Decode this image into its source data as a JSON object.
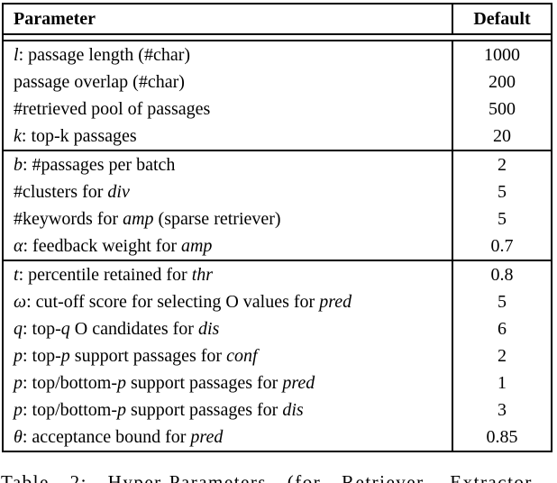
{
  "table": {
    "header": {
      "parameter": "Parameter",
      "default": "Default"
    },
    "groups": [
      {
        "rows": [
          {
            "segments": [
              {
                "text": "l",
                "style": "italic"
              },
              {
                "text": ": passage length (#char)",
                "style": "normal"
              }
            ],
            "value": "1000"
          },
          {
            "segments": [
              {
                "text": "passage overlap (#char)",
                "style": "normal"
              }
            ],
            "value": "200"
          },
          {
            "segments": [
              {
                "text": "#retrieved pool of passages",
                "style": "normal"
              }
            ],
            "value": "500"
          },
          {
            "segments": [
              {
                "text": "k",
                "style": "italic"
              },
              {
                "text": ": top-k passages",
                "style": "normal"
              }
            ],
            "value": "20"
          }
        ]
      },
      {
        "rows": [
          {
            "segments": [
              {
                "text": "b",
                "style": "italic"
              },
              {
                "text": ": #passages per batch",
                "style": "normal"
              }
            ],
            "value": "2"
          },
          {
            "segments": [
              {
                "text": "#clusters for ",
                "style": "normal"
              },
              {
                "text": "div",
                "style": "italic"
              }
            ],
            "value": "5"
          },
          {
            "segments": [
              {
                "text": "#keywords for ",
                "style": "normal"
              },
              {
                "text": "amp",
                "style": "italic"
              },
              {
                "text": " (sparse retriever)",
                "style": "normal"
              }
            ],
            "value": "5"
          },
          {
            "segments": [
              {
                "text": "α",
                "style": "italic"
              },
              {
                "text": ": feedback weight for ",
                "style": "normal"
              },
              {
                "text": "amp",
                "style": "italic"
              }
            ],
            "value": "0.7"
          }
        ]
      },
      {
        "rows": [
          {
            "segments": [
              {
                "text": "t",
                "style": "italic"
              },
              {
                "text": ": percentile retained for ",
                "style": "normal"
              },
              {
                "text": "thr",
                "style": "italic"
              }
            ],
            "value": "0.8"
          },
          {
            "segments": [
              {
                "text": "ω",
                "style": "italic"
              },
              {
                "text": ": cut-off score for selecting O values for ",
                "style": "normal"
              },
              {
                "text": "pred",
                "style": "italic"
              }
            ],
            "value": "5"
          },
          {
            "segments": [
              {
                "text": "q",
                "style": "italic"
              },
              {
                "text": ": top-",
                "style": "normal"
              },
              {
                "text": "q",
                "style": "italic"
              },
              {
                "text": " O candidates for ",
                "style": "normal"
              },
              {
                "text": "dis",
                "style": "italic"
              }
            ],
            "value": "6"
          },
          {
            "segments": [
              {
                "text": "p",
                "style": "italic"
              },
              {
                "text": ": top-",
                "style": "normal"
              },
              {
                "text": "p",
                "style": "italic"
              },
              {
                "text": " support passages for ",
                "style": "normal"
              },
              {
                "text": "conf",
                "style": "italic"
              }
            ],
            "value": "2"
          },
          {
            "segments": [
              {
                "text": "p",
                "style": "italic"
              },
              {
                "text": ": top/bottom-",
                "style": "normal"
              },
              {
                "text": "p",
                "style": "italic"
              },
              {
                "text": " support passages for ",
                "style": "normal"
              },
              {
                "text": "pred",
                "style": "italic"
              }
            ],
            "value": "1"
          },
          {
            "segments": [
              {
                "text": "p",
                "style": "italic"
              },
              {
                "text": ": top/bottom-",
                "style": "normal"
              },
              {
                "text": "p",
                "style": "italic"
              },
              {
                "text": " support passages for ",
                "style": "normal"
              },
              {
                "text": "dis",
                "style": "italic"
              }
            ],
            "value": "3"
          },
          {
            "segments": [
              {
                "text": "θ",
                "style": "italic"
              },
              {
                "text": ": acceptance bound for ",
                "style": "normal"
              },
              {
                "text": "pred",
                "style": "italic"
              }
            ],
            "value": "0.85"
          }
        ]
      }
    ]
  },
  "caption": {
    "text": "Table 2: Hyper-Parameters (for Retriever, Extractor"
  }
}
